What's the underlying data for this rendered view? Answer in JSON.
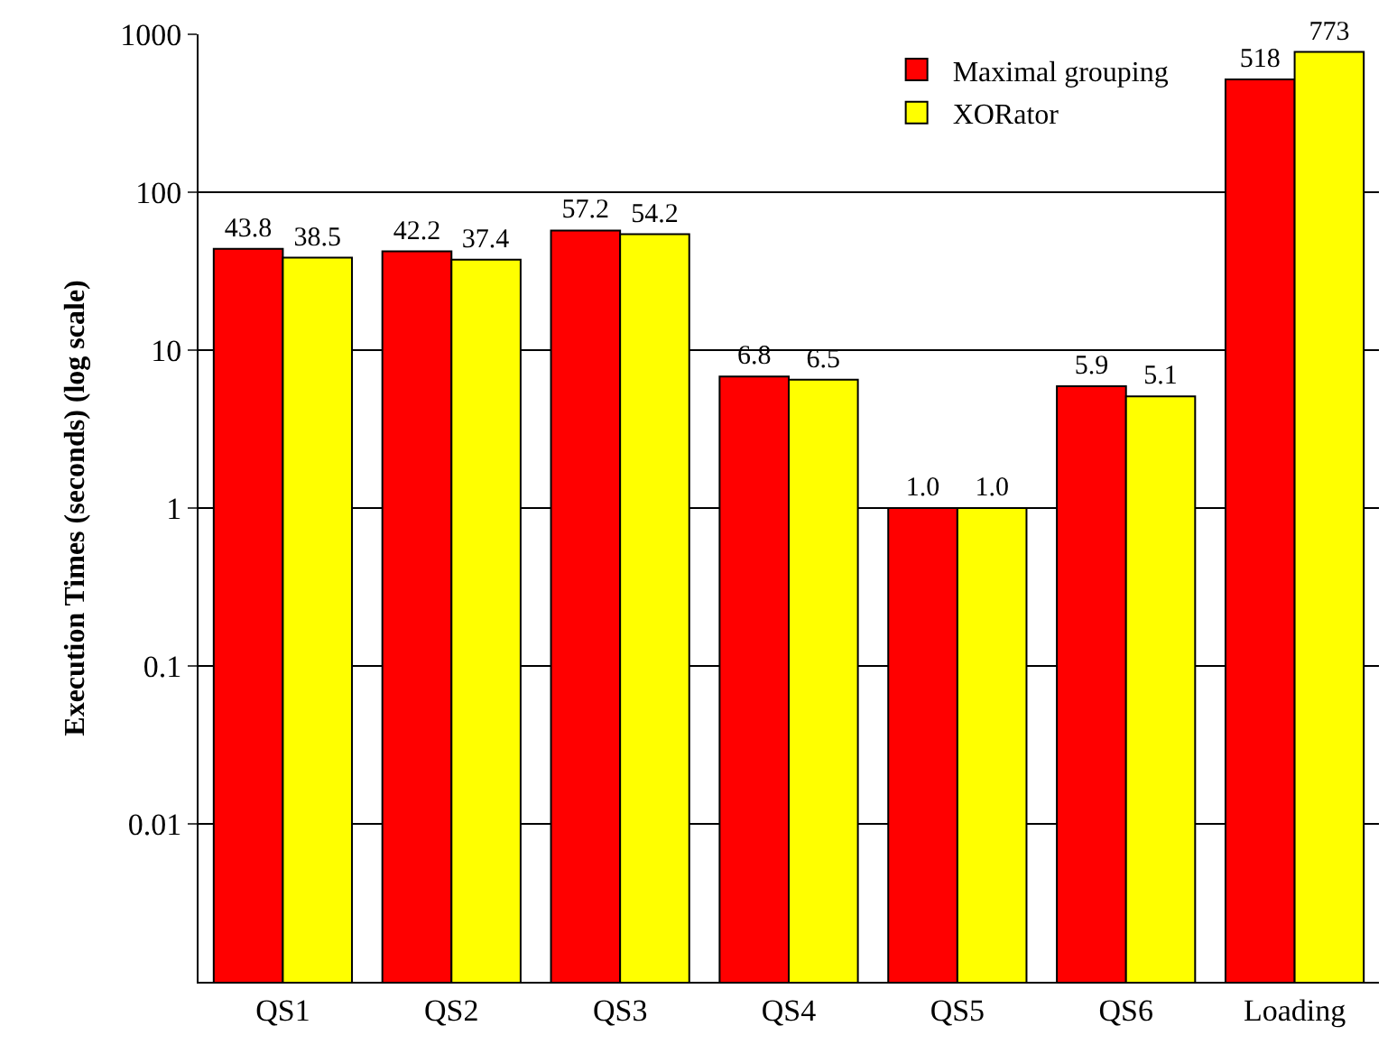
{
  "chart_data": {
    "type": "bar",
    "ylabel": "Execution Times (seconds) (log scale)",
    "categories": [
      "QS1",
      "QS2",
      "QS3",
      "QS4",
      "QS5",
      "QS6",
      "Loading"
    ],
    "series": [
      {
        "name": "Maximal grouping",
        "color": "#ff0000",
        "values": [
          43.8,
          42.2,
          57.2,
          6.8,
          1.0,
          5.9,
          518
        ],
        "value_labels": [
          "43.8",
          "42.2",
          "57.2",
          "6.8",
          "1.0",
          "5.9",
          "518"
        ]
      },
      {
        "name": "XORator",
        "color": "#ffff00",
        "values": [
          38.5,
          37.4,
          54.2,
          6.5,
          1.0,
          5.1,
          773
        ],
        "value_labels": [
          "38.5",
          "37.4",
          "54.2",
          "6.5",
          "1.0",
          "5.1",
          "773"
        ]
      }
    ],
    "log": true,
    "ylim": [
      0.001,
      1000
    ],
    "yticks": [
      0.01,
      0.1,
      1,
      10,
      100,
      1000
    ],
    "grid": "y",
    "legend": "top right"
  }
}
